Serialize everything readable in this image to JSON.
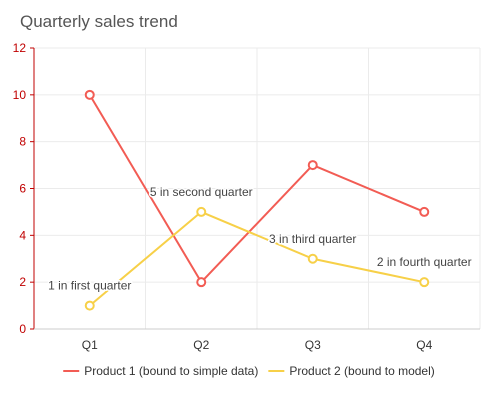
{
  "chart_data": {
    "type": "line",
    "title": "Quarterly sales trend",
    "categories": [
      "Q1",
      "Q2",
      "Q3",
      "Q4"
    ],
    "ylim": [
      0,
      12
    ],
    "yticks": [
      0,
      2,
      4,
      6,
      8,
      10,
      12
    ],
    "grid": true,
    "legend_position": "bottom",
    "series": [
      {
        "name": "Product 1 (bound to simple data)",
        "values": [
          10,
          2,
          7,
          5
        ],
        "color": "#f25c54"
      },
      {
        "name": "Product 2 (bound to model)",
        "values": [
          1,
          5,
          3,
          2
        ],
        "color": "#f7d048",
        "labels": [
          "1 in first quarter",
          "5 in second quarter",
          "3 in third quarter",
          "2 in fourth quarter"
        ]
      }
    ]
  },
  "colors": {
    "grid": "#ebebeb",
    "axis": "#cccccc",
    "y_axis": "#c00000"
  }
}
